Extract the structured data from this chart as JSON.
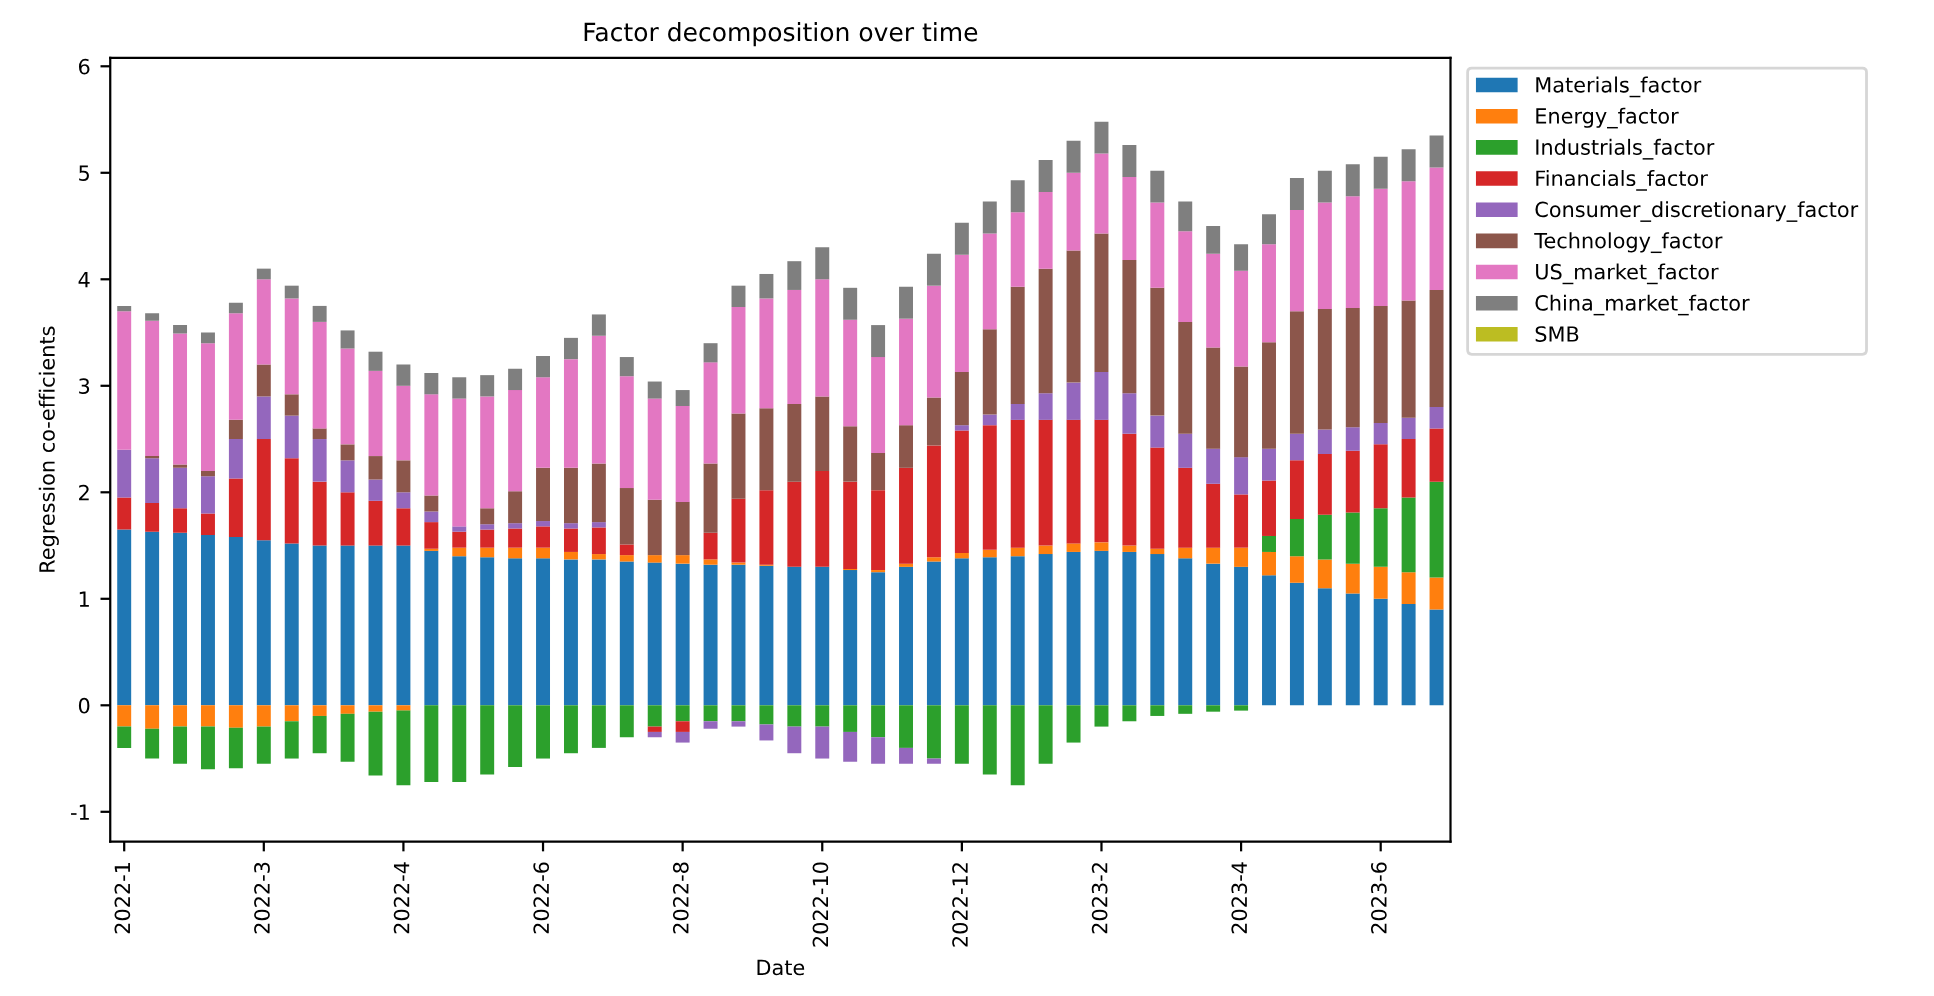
{
  "chart_data": {
    "type": "bar",
    "stacked": true,
    "title": "Factor decomposition over time",
    "xlabel": "Date",
    "ylabel": "Regression co-efficients",
    "categories": [
      "2022-1",
      null,
      null,
      null,
      null,
      "2022-3",
      null,
      null,
      null,
      null,
      "2022-4",
      null,
      null,
      null,
      null,
      "2022-6",
      null,
      null,
      null,
      null,
      "2022-8",
      null,
      null,
      null,
      null,
      "2022-10",
      null,
      null,
      null,
      null,
      "2022-12",
      null,
      null,
      null,
      null,
      "2023-2",
      null,
      null,
      null,
      null,
      "2023-4",
      null,
      null,
      null,
      null,
      "2023-6",
      null,
      null
    ],
    "ylim": [
      -1.28,
      6.08
    ],
    "yticks": [
      -1,
      0,
      1,
      2,
      3,
      4,
      5,
      6
    ],
    "grid": false,
    "legend": "right",
    "series": [
      {
        "name": "Materials_factor",
        "color": "#1f77b4",
        "values": [
          1.65,
          1.63,
          1.62,
          1.6,
          1.58,
          1.55,
          1.52,
          1.5,
          1.5,
          1.5,
          1.5,
          1.45,
          1.4,
          1.39,
          1.38,
          1.38,
          1.37,
          1.37,
          1.35,
          1.34,
          1.33,
          1.32,
          1.32,
          1.31,
          1.3,
          1.3,
          1.27,
          1.25,
          1.3,
          1.35,
          1.38,
          1.39,
          1.4,
          1.42,
          1.44,
          1.45,
          1.44,
          1.42,
          1.38,
          1.33,
          1.3,
          1.22,
          1.15,
          1.1,
          1.05,
          1.0,
          0.95,
          0.9
        ]
      },
      {
        "name": "Energy_factor",
        "color": "#ff7f0e",
        "values": [
          -0.2,
          -0.22,
          -0.2,
          -0.2,
          -0.21,
          -0.2,
          -0.15,
          -0.1,
          -0.08,
          -0.06,
          -0.05,
          0.02,
          0.08,
          0.09,
          0.1,
          0.1,
          0.07,
          0.05,
          0.06,
          0.07,
          0.08,
          0.05,
          0.02,
          0.01,
          0.0,
          0.0,
          0.01,
          0.02,
          0.03,
          0.04,
          0.05,
          0.07,
          0.08,
          0.08,
          0.08,
          0.08,
          0.06,
          0.05,
          0.1,
          0.15,
          0.18,
          0.22,
          0.25,
          0.27,
          0.28,
          0.3,
          0.3,
          0.3
        ]
      },
      {
        "name": "Industrials_factor",
        "color": "#2ca02c",
        "values": [
          -0.2,
          -0.28,
          -0.35,
          -0.4,
          -0.38,
          -0.35,
          -0.35,
          -0.35,
          -0.45,
          -0.6,
          -0.7,
          -0.72,
          -0.72,
          -0.65,
          -0.58,
          -0.5,
          -0.45,
          -0.4,
          -0.3,
          -0.2,
          -0.15,
          -0.15,
          -0.15,
          -0.18,
          -0.2,
          -0.2,
          -0.25,
          -0.3,
          -0.4,
          -0.5,
          -0.55,
          -0.65,
          -0.75,
          -0.55,
          -0.35,
          -0.2,
          -0.15,
          -0.1,
          -0.08,
          -0.06,
          -0.05,
          0.15,
          0.35,
          0.42,
          0.48,
          0.55,
          0.7,
          0.9
        ]
      },
      {
        "name": "Financials_factor",
        "color": "#d62728",
        "values": [
          0.3,
          0.27,
          0.23,
          0.2,
          0.55,
          0.95,
          0.8,
          0.6,
          0.5,
          0.42,
          0.35,
          0.25,
          0.15,
          0.17,
          0.18,
          0.2,
          0.22,
          0.25,
          0.1,
          -0.05,
          -0.1,
          0.25,
          0.6,
          0.7,
          0.8,
          0.9,
          0.82,
          0.75,
          0.9,
          1.05,
          1.15,
          1.17,
          1.2,
          1.18,
          1.16,
          1.15,
          1.05,
          0.95,
          0.75,
          0.6,
          0.5,
          0.52,
          0.55,
          0.57,
          0.58,
          0.6,
          0.55,
          0.5
        ]
      },
      {
        "name": "Consumer_discretionary_factor",
        "color": "#9467bd",
        "values": [
          0.45,
          0.42,
          0.38,
          0.35,
          0.37,
          0.4,
          0.4,
          0.4,
          0.3,
          0.2,
          0.15,
          0.1,
          0.05,
          0.05,
          0.05,
          0.05,
          0.05,
          0.05,
          0.0,
          -0.05,
          -0.1,
          -0.07,
          -0.05,
          -0.15,
          -0.25,
          -0.3,
          -0.28,
          -0.25,
          -0.15,
          -0.05,
          0.05,
          0.1,
          0.15,
          0.25,
          0.35,
          0.45,
          0.38,
          0.3,
          0.32,
          0.33,
          0.35,
          0.3,
          0.25,
          0.23,
          0.22,
          0.2,
          0.2,
          0.2
        ]
      },
      {
        "name": "Technology_factor",
        "color": "#8c564b",
        "values": [
          0.0,
          0.02,
          0.03,
          0.05,
          0.18,
          0.3,
          0.2,
          0.1,
          0.15,
          0.22,
          0.3,
          0.15,
          0.0,
          0.15,
          0.3,
          0.5,
          0.52,
          0.55,
          0.53,
          0.52,
          0.5,
          0.65,
          0.8,
          0.77,
          0.73,
          0.7,
          0.52,
          0.35,
          0.4,
          0.45,
          0.5,
          0.8,
          1.1,
          1.17,
          1.24,
          1.3,
          1.25,
          1.2,
          1.05,
          0.95,
          0.85,
          1.0,
          1.15,
          1.13,
          1.12,
          1.1,
          1.1,
          1.1
        ]
      },
      {
        "name": "US_market_factor",
        "color": "#e377c2",
        "values": [
          1.3,
          1.27,
          1.23,
          1.2,
          1.0,
          0.8,
          0.9,
          1.0,
          0.9,
          0.8,
          0.7,
          0.95,
          1.2,
          1.05,
          0.95,
          0.85,
          1.02,
          1.2,
          1.05,
          0.95,
          0.9,
          0.95,
          1.0,
          1.03,
          1.07,
          1.1,
          1.0,
          0.9,
          1.0,
          1.05,
          1.1,
          0.9,
          0.7,
          0.72,
          0.73,
          0.75,
          0.78,
          0.8,
          0.85,
          0.88,
          0.9,
          0.92,
          0.95,
          1.0,
          1.05,
          1.1,
          1.12,
          1.15
        ]
      },
      {
        "name": "China_market_factor",
        "color": "#7f7f7f",
        "values": [
          0.05,
          0.07,
          0.08,
          0.1,
          0.1,
          0.1,
          0.12,
          0.15,
          0.17,
          0.18,
          0.2,
          0.2,
          0.2,
          0.2,
          0.2,
          0.2,
          0.2,
          0.2,
          0.18,
          0.16,
          0.15,
          0.18,
          0.2,
          0.23,
          0.27,
          0.3,
          0.3,
          0.3,
          0.3,
          0.3,
          0.3,
          0.3,
          0.3,
          0.3,
          0.3,
          0.3,
          0.3,
          0.3,
          0.28,
          0.26,
          0.25,
          0.28,
          0.3,
          0.3,
          0.3,
          0.3,
          0.3,
          0.3
        ]
      },
      {
        "name": "SMB",
        "color": "#bcbd22",
        "values": [
          0.0,
          0.0,
          0.0,
          0.0,
          0.0,
          0.0,
          0.0,
          0.0,
          0.0,
          0.0,
          0.0,
          0.0,
          0.0,
          0.0,
          0.0,
          0.0,
          0.0,
          0.0,
          0.0,
          0.0,
          0.0,
          0.0,
          0.0,
          0.0,
          0.0,
          0.0,
          0.0,
          0.0,
          0.0,
          0.0,
          0.0,
          0.0,
          0.0,
          0.0,
          0.0,
          0.0,
          0.0,
          0.0,
          0.0,
          0.0,
          0.0,
          0.0,
          0.0,
          0.0,
          0.0,
          0.0,
          0.0,
          0.0
        ]
      }
    ]
  }
}
